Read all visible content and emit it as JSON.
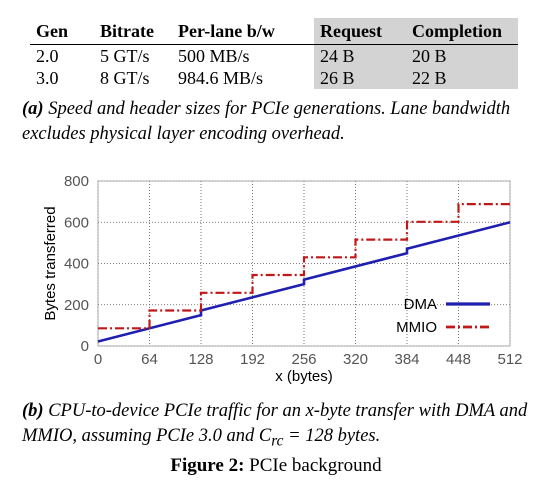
{
  "table": {
    "headers": [
      "Gen",
      "Bitrate",
      "Per-lane b/w",
      "Request",
      "Completion"
    ],
    "rows": [
      [
        "2.0",
        "5 GT/s",
        "500 MB/s",
        "24 B",
        "20 B"
      ],
      [
        "3.0",
        "8 GT/s",
        "984.6 MB/s",
        "26 B",
        "22 B"
      ]
    ]
  },
  "caption_a": {
    "label": "(a)",
    "text": "Speed and header sizes for PCIe generations. Lane bandwidth excludes physical layer encoding overhead."
  },
  "caption_b": {
    "label": "(b)",
    "text_1": "CPU-to-device PCIe traffic for an x-byte transfer with DMA and MMIO, assuming PCIe 3.0 and C",
    "subscript": "rc",
    "text_2": " = 128 bytes."
  },
  "figure_caption": {
    "label": "Figure 2:",
    "text": "PCIe background"
  },
  "colors": {
    "dma": "#1f1fb0",
    "mmio": "#c01818"
  },
  "chart_data": {
    "type": "line",
    "xlabel": "x (bytes)",
    "ylabel": "Bytes transferred",
    "xlim": [
      0,
      512
    ],
    "ylim": [
      0,
      800
    ],
    "xticks": [
      0,
      64,
      128,
      192,
      256,
      320,
      384,
      448,
      512
    ],
    "yticks": [
      0,
      200,
      400,
      600,
      800
    ],
    "grid": true,
    "legend_position": "bottom-right",
    "series": [
      {
        "name": "DMA",
        "style": "solid",
        "points": [
          [
            0,
            22
          ],
          [
            128,
            150
          ],
          [
            128,
            172
          ],
          [
            256,
            300
          ],
          [
            256,
            322
          ],
          [
            384,
            450
          ],
          [
            384,
            472
          ],
          [
            512,
            600
          ]
        ]
      },
      {
        "name": "MMIO",
        "style": "dash-dot",
        "points": [
          [
            0,
            86
          ],
          [
            64,
            86
          ],
          [
            64,
            172
          ],
          [
            128,
            172
          ],
          [
            128,
            258
          ],
          [
            192,
            258
          ],
          [
            192,
            344
          ],
          [
            256,
            344
          ],
          [
            256,
            430
          ],
          [
            320,
            430
          ],
          [
            320,
            516
          ],
          [
            384,
            516
          ],
          [
            384,
            602
          ],
          [
            448,
            602
          ],
          [
            448,
            688
          ],
          [
            512,
            688
          ]
        ]
      }
    ]
  }
}
